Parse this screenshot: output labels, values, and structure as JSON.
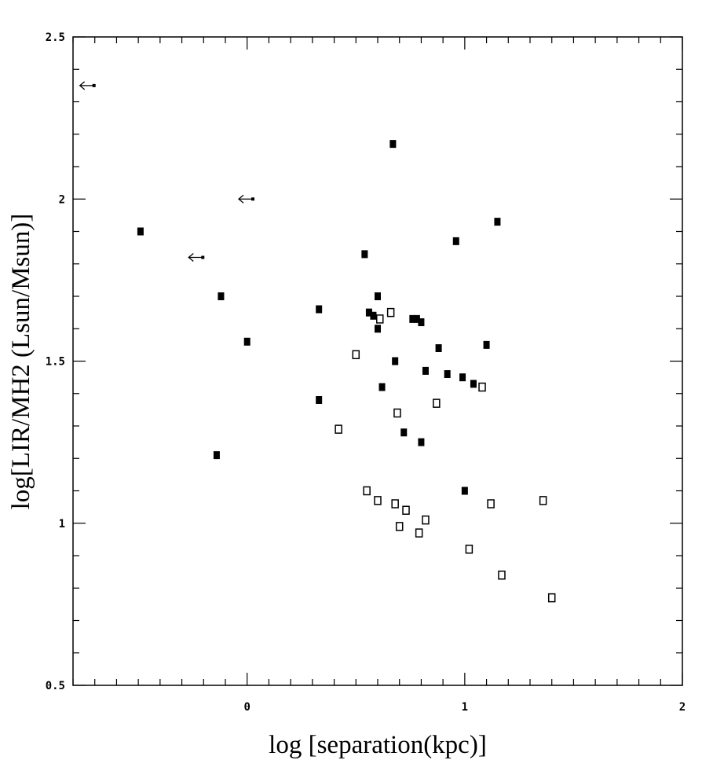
{
  "chart_data": {
    "type": "scatter",
    "xlabel": "log [separation(kpc)]",
    "ylabel": "log[LIR/MH2 (Lsun/Msun)]",
    "xlim": [
      -0.8,
      2
    ],
    "ylim": [
      0.5,
      2.5
    ],
    "x_ticks": [
      "0",
      "1",
      "2"
    ],
    "y_ticks": [
      "0.5",
      "1",
      "1.5",
      "2",
      "2.5"
    ],
    "x_tick_values": [
      0,
      1,
      2
    ],
    "y_tick_values": [
      0.5,
      1,
      1.5,
      2,
      2.5
    ],
    "grid": false,
    "legend": "none",
    "marker_color": "#000000",
    "series": [
      {
        "marker": "filled-square",
        "x": [
          -0.49,
          -0.12,
          -0.14,
          0.0,
          0.33,
          0.33,
          0.54,
          0.56,
          0.58,
          0.6,
          0.6,
          0.67,
          0.62,
          0.68,
          0.72,
          0.76,
          0.78,
          0.8,
          0.8,
          0.82,
          0.88,
          0.92,
          0.96,
          0.99,
          1.04,
          1.1,
          1.15,
          1.0
        ],
        "y": [
          1.9,
          1.7,
          1.21,
          1.56,
          1.66,
          1.38,
          1.83,
          1.65,
          1.64,
          1.7,
          1.6,
          2.17,
          1.42,
          1.5,
          1.28,
          1.63,
          1.63,
          1.62,
          1.25,
          1.47,
          1.54,
          1.46,
          1.87,
          1.45,
          1.43,
          1.55,
          1.93,
          1.1
        ]
      },
      {
        "marker": "open-square",
        "x": [
          0.42,
          0.5,
          0.55,
          0.6,
          0.61,
          0.66,
          0.68,
          0.69,
          0.7,
          0.73,
          0.79,
          0.82,
          0.87,
          1.02,
          1.08,
          1.12,
          1.17,
          1.36,
          1.4
        ],
        "y": [
          1.29,
          1.52,
          1.1,
          1.07,
          1.63,
          1.65,
          1.06,
          1.34,
          0.99,
          1.04,
          0.97,
          1.01,
          1.37,
          0.92,
          1.42,
          1.06,
          0.84,
          1.07,
          0.77
        ]
      },
      {
        "marker": "upper-limit-arrow-left",
        "x": [
          -0.7,
          -0.2,
          0.03
        ],
        "y": [
          2.35,
          1.82,
          2.0
        ]
      }
    ]
  }
}
